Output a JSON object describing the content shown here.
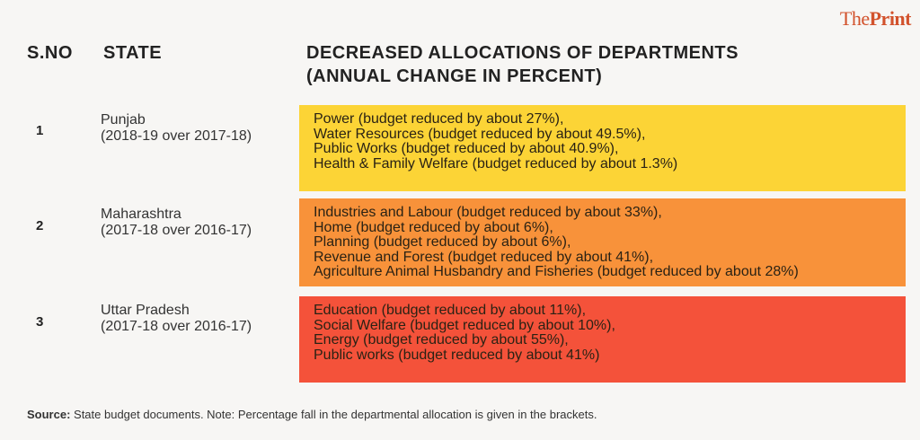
{
  "logo": {
    "part1": "The",
    "part2": "Print"
  },
  "headers": {
    "sno": "S.NO",
    "state": "STATE",
    "allocations_line1": "DECREASED ALLOCATIONS OF DEPARTMENTS",
    "allocations_line2": "(ANNUAL CHANGE IN PERCENT)"
  },
  "rows": [
    {
      "sno": "1",
      "state": "Punjab",
      "period": "(2018-19 over 2017-18)",
      "color": "#fcd436",
      "items": [
        "Power (budget reduced by about 27%),",
        "Water Resources (budget reduced by about 49.5%),",
        "Public Works (budget reduced by about 40.9%),",
        "Health & Family Welfare (budget reduced by about 1.3%)"
      ]
    },
    {
      "sno": "2",
      "state": "Maharashtra",
      "period": "(2017-18 over 2016-17)",
      "color": "#f8923a",
      "items": [
        "Industries and Labour (budget reduced by about 33%),",
        "Home (budget reduced by about 6%),",
        "Planning (budget reduced by about 6%),",
        "Revenue and Forest (budget reduced by about 41%),",
        "Agriculture Animal Husbandry and Fisheries (budget reduced by about 28%)"
      ]
    },
    {
      "sno": "3",
      "state": "Uttar Pradesh",
      "period": "(2017-18 over 2016-17)",
      "color": "#f4523a",
      "items": [
        "Education (budget reduced by about 11%),",
        "Social Welfare (budget reduced by about 10%),",
        "Energy (budget reduced by about 55%),",
        "Public works (budget reduced by about 41%)"
      ]
    }
  ],
  "source": {
    "label": "Source:",
    "text": " State budget documents. Note: Percentage fall in the departmental allocation is given in the brackets."
  }
}
